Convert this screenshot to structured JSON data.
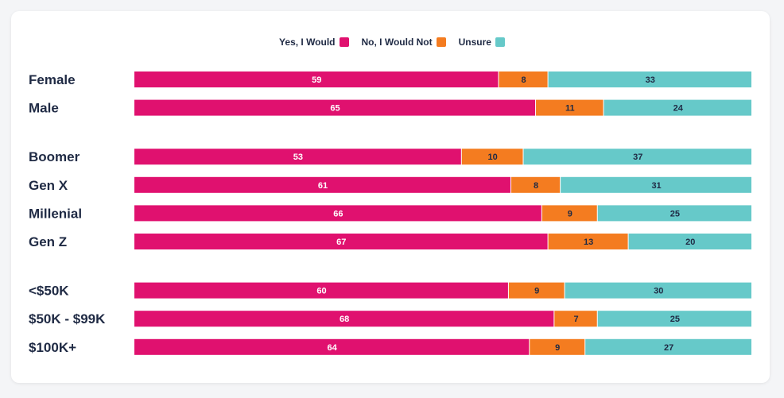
{
  "chart_data": {
    "type": "bar",
    "orientation": "horizontal",
    "stacked": true,
    "legend_position": "top-center",
    "series": [
      {
        "name": "Yes, I Would",
        "color": "#e0116f",
        "label_color": "#ffffff"
      },
      {
        "name": "No, I Would Not",
        "color": "#f47c20",
        "label_color": "#1f2a44"
      },
      {
        "name": "Unsure",
        "color": "#66c9c9",
        "label_color": "#1f2a44"
      }
    ],
    "groups": [
      {
        "rows": [
          {
            "label": "Female",
            "values": [
              59,
              8,
              33
            ]
          },
          {
            "label": "Male",
            "values": [
              65,
              11,
              24
            ]
          }
        ]
      },
      {
        "rows": [
          {
            "label": "Boomer",
            "values": [
              53,
              10,
              37
            ]
          },
          {
            "label": "Gen X",
            "values": [
              61,
              8,
              31
            ]
          },
          {
            "label": "Millenial",
            "values": [
              66,
              9,
              25
            ]
          },
          {
            "label": "Gen Z",
            "values": [
              67,
              13,
              20
            ]
          }
        ]
      },
      {
        "rows": [
          {
            "label": "<$50K",
            "values": [
              60,
              9,
              30
            ]
          },
          {
            "label": "$50K - $99K",
            "values": [
              68,
              7,
              25
            ]
          },
          {
            "label": "$100K+",
            "values": [
              64,
              9,
              27
            ]
          }
        ]
      }
    ]
  }
}
